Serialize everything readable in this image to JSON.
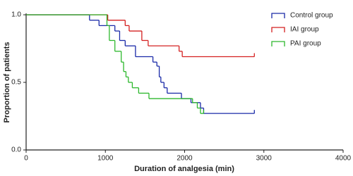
{
  "chart_data": {
    "type": "step",
    "x_label": "Duration of analgesia (min)",
    "y_label": "Proportion of patients",
    "xlim": [
      0,
      4000
    ],
    "xticks": [
      0,
      1000,
      2000,
      3000,
      4000
    ],
    "ylim": [
      0,
      1.0
    ],
    "yticks": [
      {
        "value": 0,
        "label": "0.0"
      },
      {
        "value": 0.5,
        "label": "0.5"
      },
      {
        "value": 1,
        "label": "1.0"
      }
    ],
    "legend": "top-right",
    "series": [
      {
        "name": "Control group",
        "color": "#1a2aa8",
        "x": [
          0,
          800,
          920,
          1120,
          1180,
          1250,
          1380,
          1600,
          1650,
          1680,
          1700,
          1740,
          1780,
          1960,
          2080,
          2200,
          2240,
          2880
        ],
        "values": [
          1,
          0.96,
          0.92,
          0.88,
          0.81,
          0.77,
          0.69,
          0.65,
          0.62,
          0.54,
          0.5,
          0.46,
          0.42,
          0.38,
          0.35,
          0.31,
          0.27,
          0.27
        ]
      },
      {
        "name": "IAI group",
        "color": "#d42020",
        "x": [
          0,
          1030,
          1250,
          1300,
          1460,
          1540,
          1930,
          1970,
          2880
        ],
        "values": [
          1,
          0.96,
          0.92,
          0.88,
          0.81,
          0.77,
          0.73,
          0.69,
          0.69
        ]
      },
      {
        "name": "PAI group",
        "color": "#2db82d",
        "x": [
          0,
          1020,
          1050,
          1120,
          1200,
          1230,
          1260,
          1290,
          1340,
          1420,
          1550,
          2100,
          2160,
          2200,
          2240
        ],
        "values": [
          1,
          0.92,
          0.81,
          0.73,
          0.65,
          0.58,
          0.54,
          0.5,
          0.46,
          0.42,
          0.38,
          0.35,
          0.31,
          0.27,
          0.27
        ]
      }
    ]
  }
}
